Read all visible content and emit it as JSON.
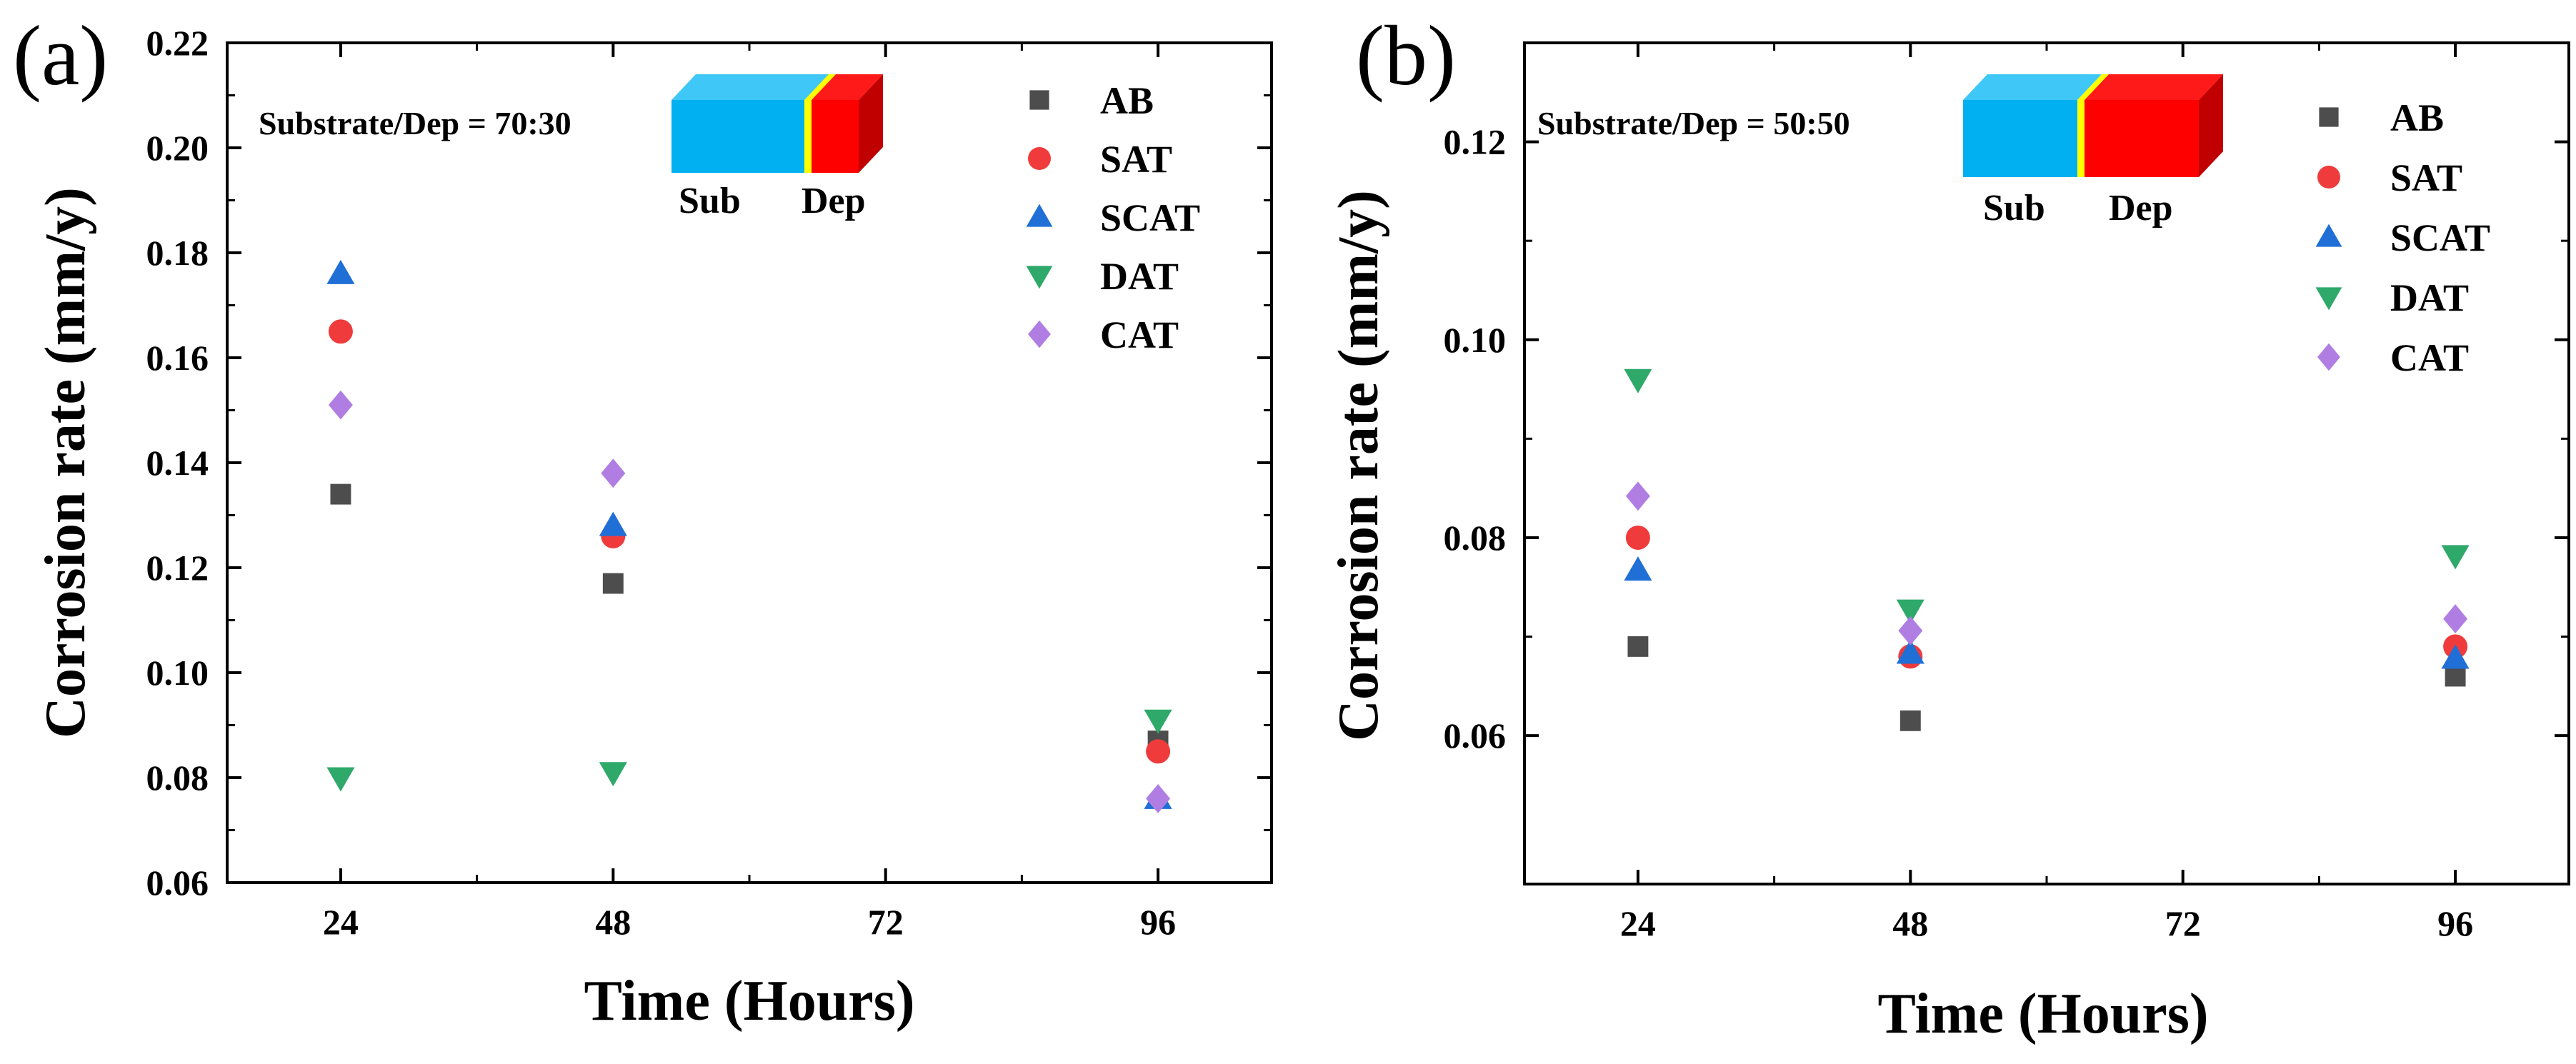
{
  "chart_data": [
    {
      "type": "scatter",
      "panel_label": "(a)",
      "ratio_label": "Substrate/Dep = 70:30",
      "inset": {
        "sub_label": "Sub",
        "dep_label": "Dep",
        "sub_fraction": 0.7
      },
      "xlabel": "Time (Hours)",
      "ylabel": "Corrosion rate (mm/y)",
      "xlim": [
        14,
        106
      ],
      "ylim": [
        0.06,
        0.22
      ],
      "xticks": [
        24,
        48,
        72,
        96
      ],
      "xtick_labels": [
        "24",
        "48",
        "72",
        "96"
      ],
      "yticks": [
        0.06,
        0.08,
        0.1,
        0.12,
        0.14,
        0.16,
        0.18,
        0.2,
        0.22
      ],
      "ytick_labels": [
        "0.06",
        "0.08",
        "0.10",
        "0.12",
        "0.14",
        "0.16",
        "0.18",
        "0.20",
        "0.22"
      ],
      "grid": false,
      "legend_position": "top-right",
      "x": [
        24,
        48,
        96
      ],
      "series": [
        {
          "name": "AB",
          "marker": "square",
          "color": "#4d4d4d",
          "values": [
            0.134,
            0.117,
            0.087
          ]
        },
        {
          "name": "SAT",
          "marker": "circle",
          "color": "#ef3b3b",
          "values": [
            0.165,
            0.126,
            0.085
          ]
        },
        {
          "name": "SCAT",
          "marker": "triangle-up",
          "color": "#1f6fd6",
          "values": [
            0.176,
            0.128,
            0.076
          ]
        },
        {
          "name": "DAT",
          "marker": "triangle-down",
          "color": "#2ea96a",
          "values": [
            0.08,
            0.081,
            0.091
          ]
        },
        {
          "name": "CAT",
          "marker": "diamond",
          "color": "#b07ee3",
          "values": [
            0.151,
            0.138,
            0.076
          ]
        }
      ]
    },
    {
      "type": "scatter",
      "panel_label": "(b)",
      "ratio_label": "Substrate/Dep = 50:50",
      "inset": {
        "sub_label": "Sub",
        "dep_label": "Dep",
        "sub_fraction": 0.5
      },
      "xlabel": "Time (Hours)",
      "ylabel": "Corrosion rate (mm/y)",
      "xlim": [
        14,
        106
      ],
      "ylim": [
        0.045,
        0.13
      ],
      "xticks": [
        24,
        48,
        72,
        96
      ],
      "xtick_labels": [
        "24",
        "48",
        "72",
        "96"
      ],
      "yticks": [
        0.06,
        0.08,
        0.1,
        0.12
      ],
      "ytick_labels": [
        "0.06",
        "0.08",
        "0.10",
        "0.12"
      ],
      "grid": false,
      "legend_position": "top-right",
      "x": [
        24,
        48,
        96
      ],
      "series": [
        {
          "name": "AB",
          "marker": "square",
          "color": "#4d4d4d",
          "values": [
            0.069,
            0.0615,
            0.066
          ]
        },
        {
          "name": "SAT",
          "marker": "circle",
          "color": "#ef3b3b",
          "values": [
            0.08,
            0.068,
            0.069
          ]
        },
        {
          "name": "SCAT",
          "marker": "triangle-up",
          "color": "#1f6fd6",
          "values": [
            0.0767,
            0.0683,
            0.0678
          ]
        },
        {
          "name": "DAT",
          "marker": "triangle-down",
          "color": "#2ea96a",
          "values": [
            0.096,
            0.0727,
            0.0782
          ]
        },
        {
          "name": "CAT",
          "marker": "diamond",
          "color": "#b07ee3",
          "values": [
            0.0842,
            0.0706,
            0.0718
          ]
        }
      ]
    }
  ],
  "colors": {
    "substrate": "#00b0f0",
    "substrate_top": "#3ec7f7",
    "interface": "#ffff00",
    "deposit": "#ff0000",
    "deposit_side": "#c00000"
  }
}
